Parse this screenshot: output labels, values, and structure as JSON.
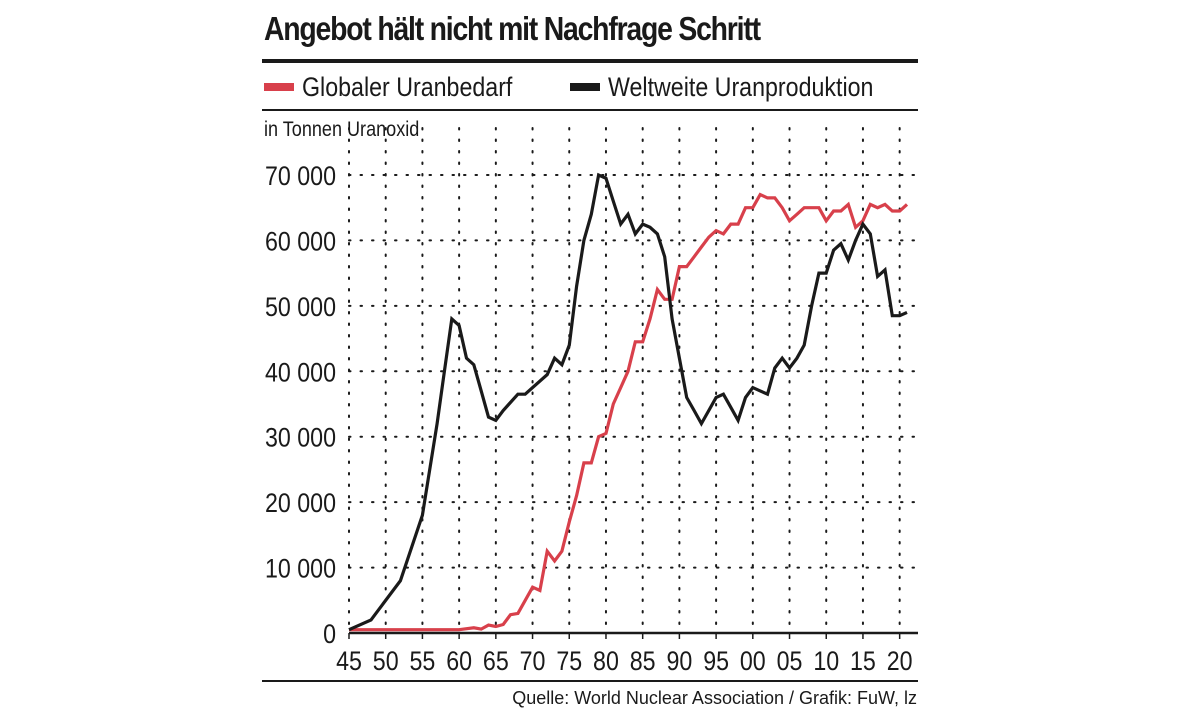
{
  "chart_data": {
    "type": "line",
    "title": "Angebot hält nicht mit Nachfrage Schritt",
    "ylabel": "in Tonnen Uranoxid",
    "xlabel": "",
    "source": "Quelle: World Nuclear Association / Grafik: FuW, lz",
    "xlim": [
      1945,
      2021
    ],
    "ylim": [
      0,
      70000
    ],
    "x_ticks": [
      1945,
      1950,
      1955,
      1960,
      1965,
      1970,
      1975,
      1980,
      1985,
      1990,
      1995,
      2000,
      2005,
      2010,
      2015,
      2020
    ],
    "x_tick_labels": [
      "45",
      "50",
      "55",
      "60",
      "65",
      "70",
      "75",
      "80",
      "85",
      "90",
      "95",
      "00",
      "05",
      "10",
      "15",
      "20"
    ],
    "y_ticks": [
      0,
      10000,
      20000,
      30000,
      40000,
      50000,
      60000,
      70000
    ],
    "y_tick_labels": [
      "0",
      "10 000",
      "20 000",
      "30 000",
      "40 000",
      "50 000",
      "60 000",
      "70 000"
    ],
    "grid": true,
    "legend_position": "top",
    "series": [
      {
        "name": "Globaler Uranbedarf",
        "color": "#d8404b",
        "points": [
          [
            1945,
            500
          ],
          [
            1960,
            500
          ],
          [
            1962,
            800
          ],
          [
            1963,
            600
          ],
          [
            1964,
            1200
          ],
          [
            1965,
            1000
          ],
          [
            1966,
            1300
          ],
          [
            1967,
            2800
          ],
          [
            1968,
            3000
          ],
          [
            1970,
            7000
          ],
          [
            1971,
            6500
          ],
          [
            1972,
            12500
          ],
          [
            1973,
            11000
          ],
          [
            1974,
            12500
          ],
          [
            1975,
            17000
          ],
          [
            1976,
            21000
          ],
          [
            1977,
            26000
          ],
          [
            1978,
            26000
          ],
          [
            1979,
            30000
          ],
          [
            1980,
            30500
          ],
          [
            1981,
            35000
          ],
          [
            1982,
            37500
          ],
          [
            1983,
            40000
          ],
          [
            1984,
            44500
          ],
          [
            1985,
            44500
          ],
          [
            1986,
            48000
          ],
          [
            1987,
            52500
          ],
          [
            1988,
            51000
          ],
          [
            1989,
            51000
          ],
          [
            1990,
            56000
          ],
          [
            1991,
            56000
          ],
          [
            1992,
            57500
          ],
          [
            1993,
            59000
          ],
          [
            1994,
            60500
          ],
          [
            1995,
            61500
          ],
          [
            1996,
            61000
          ],
          [
            1997,
            62500
          ],
          [
            1998,
            62500
          ],
          [
            1999,
            65000
          ],
          [
            2000,
            65000
          ],
          [
            2001,
            67000
          ],
          [
            2002,
            66500
          ],
          [
            2003,
            66500
          ],
          [
            2004,
            65000
          ],
          [
            2005,
            63000
          ],
          [
            2006,
            64000
          ],
          [
            2007,
            65000
          ],
          [
            2008,
            65000
          ],
          [
            2009,
            65000
          ],
          [
            2010,
            63000
          ],
          [
            2011,
            64500
          ],
          [
            2012,
            64500
          ],
          [
            2013,
            65500
          ],
          [
            2014,
            62000
          ],
          [
            2015,
            63000
          ],
          [
            2016,
            65500
          ],
          [
            2017,
            65000
          ],
          [
            2018,
            65500
          ],
          [
            2019,
            64500
          ],
          [
            2020,
            64500
          ],
          [
            2021,
            65500
          ]
        ]
      },
      {
        "name": "Weltweite Uranproduktion",
        "color": "#1a1a1a",
        "points": [
          [
            1945,
            500
          ],
          [
            1948,
            2000
          ],
          [
            1952,
            8000
          ],
          [
            1955,
            18000
          ],
          [
            1957,
            32000
          ],
          [
            1958,
            40000
          ],
          [
            1959,
            48000
          ],
          [
            1960,
            47000
          ],
          [
            1961,
            42000
          ],
          [
            1962,
            41000
          ],
          [
            1963,
            37000
          ],
          [
            1964,
            33000
          ],
          [
            1965,
            32500
          ],
          [
            1966,
            34000
          ],
          [
            1968,
            36500
          ],
          [
            1969,
            36500
          ],
          [
            1970,
            37500
          ],
          [
            1972,
            39500
          ],
          [
            1973,
            42000
          ],
          [
            1974,
            41000
          ],
          [
            1975,
            44000
          ],
          [
            1976,
            53000
          ],
          [
            1977,
            60000
          ],
          [
            1978,
            64000
          ],
          [
            1979,
            70000
          ],
          [
            1980,
            69500
          ],
          [
            1981,
            66000
          ],
          [
            1982,
            62500
          ],
          [
            1983,
            64000
          ],
          [
            1984,
            61000
          ],
          [
            1985,
            62500
          ],
          [
            1986,
            62000
          ],
          [
            1987,
            61000
          ],
          [
            1988,
            57500
          ],
          [
            1989,
            48000
          ],
          [
            1990,
            42000
          ],
          [
            1991,
            36000
          ],
          [
            1992,
            34000
          ],
          [
            1993,
            32000
          ],
          [
            1994,
            34000
          ],
          [
            1995,
            36000
          ],
          [
            1996,
            36500
          ],
          [
            1997,
            34500
          ],
          [
            1998,
            32500
          ],
          [
            1999,
            36000
          ],
          [
            2000,
            37500
          ],
          [
            2001,
            37000
          ],
          [
            2002,
            36500
          ],
          [
            2003,
            40500
          ],
          [
            2004,
            42000
          ],
          [
            2005,
            40500
          ],
          [
            2006,
            42000
          ],
          [
            2007,
            44000
          ],
          [
            2008,
            50000
          ],
          [
            2009,
            55000
          ],
          [
            2010,
            55000
          ],
          [
            2011,
            58500
          ],
          [
            2012,
            59500
          ],
          [
            2013,
            57000
          ],
          [
            2014,
            60000
          ],
          [
            2015,
            62500
          ],
          [
            2016,
            61000
          ],
          [
            2017,
            54500
          ],
          [
            2018,
            55500
          ],
          [
            2019,
            48500
          ],
          [
            2020,
            48500
          ],
          [
            2021,
            49000
          ]
        ]
      }
    ]
  }
}
